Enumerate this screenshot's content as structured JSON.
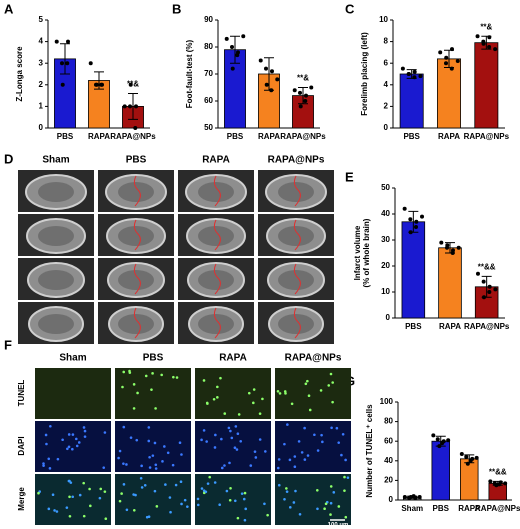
{
  "chart_data": [
    {
      "type": "bar",
      "panel": "A",
      "y_label": "Z-Longa score",
      "categories": [
        "PBS",
        "RAPA",
        "RAPA@NPs"
      ],
      "values": [
        3.2,
        2.2,
        1.0
      ],
      "errors": [
        0.7,
        0.4,
        0.6
      ],
      "points": [
        [
          4,
          3,
          3,
          2,
          4
        ],
        [
          3,
          2,
          2,
          2,
          2
        ],
        [
          1,
          1,
          0,
          2,
          1
        ]
      ],
      "colors": [
        "#1a1ad0",
        "#f5821f",
        "#a3100f"
      ],
      "annotation": "**&",
      "ylim": [
        0,
        5
      ],
      "yticks": [
        0,
        1,
        2,
        3,
        4,
        5
      ]
    },
    {
      "type": "bar",
      "panel": "B",
      "y_label": "Foot-fault-test (%)",
      "categories": [
        "PBS",
        "RAPA",
        "RAPA@NPs"
      ],
      "values": [
        79,
        70,
        62
      ],
      "errors": [
        5,
        6,
        3
      ],
      "points": [
        [
          83,
          80,
          77,
          72,
          78,
          84
        ],
        [
          75,
          72,
          64,
          66,
          71,
          68
        ],
        [
          64,
          63,
          60,
          58,
          62,
          65
        ]
      ],
      "colors": [
        "#1a1ad0",
        "#f5821f",
        "#a3100f"
      ],
      "annotation": "**&",
      "ylim": [
        50,
        90
      ],
      "yticks": [
        50,
        60,
        70,
        80,
        90
      ]
    },
    {
      "type": "bar",
      "panel": "C",
      "y_label": "Forelimb placing (left)",
      "categories": [
        "PBS",
        "RAPA",
        "RAPA@NPs"
      ],
      "values": [
        5.0,
        6.4,
        7.9
      ],
      "errors": [
        0.4,
        0.8,
        0.6
      ],
      "points": [
        [
          5.5,
          5,
          4.7,
          5,
          5.2,
          4.8
        ],
        [
          7,
          6,
          5.5,
          6.5,
          7.3,
          6.2
        ],
        [
          8.5,
          8,
          7.5,
          7.8,
          8.4,
          7.3
        ]
      ],
      "colors": [
        "#1a1ad0",
        "#f5821f",
        "#a3100f"
      ],
      "annotation": "**&",
      "ylim": [
        0,
        10
      ],
      "yticks": [
        0,
        2,
        4,
        6,
        8,
        10
      ]
    },
    {
      "type": "bar",
      "panel": "E",
      "y_label": [
        "Infarct volume",
        "(% of whole brain)"
      ],
      "categories": [
        "PBS",
        "RAPA",
        "RAPA@NPs"
      ],
      "values": [
        37,
        27,
        12
      ],
      "errors": [
        4,
        2,
        4
      ],
      "points": [
        [
          42,
          38,
          35,
          33,
          37,
          39
        ],
        [
          29,
          27,
          25,
          28,
          26,
          27
        ],
        [
          17,
          14,
          10,
          8,
          12,
          11
        ]
      ],
      "colors": [
        "#1a1ad0",
        "#f5821f",
        "#a3100f"
      ],
      "annotation": "**&&",
      "ylim": [
        0,
        50
      ],
      "yticks": [
        0,
        10,
        20,
        30,
        40,
        50
      ]
    },
    {
      "type": "bar",
      "panel": "G",
      "y_label": "Number of TUNEL⁺ cells",
      "categories": [
        "Sham",
        "PBS",
        "RAPA",
        "RAPA@NPs"
      ],
      "values": [
        3,
        60,
        42,
        17
      ],
      "errors": [
        1,
        5,
        4,
        2
      ],
      "points": [
        [
          3,
          2,
          4,
          3,
          2,
          3
        ],
        [
          66,
          62,
          58,
          55,
          60,
          61
        ],
        [
          47,
          44,
          40,
          37,
          42,
          43
        ],
        [
          19,
          17,
          16,
          15,
          18,
          17
        ]
      ],
      "colors": [
        "#606060",
        "#1a1ad0",
        "#f5821f",
        "#a3100f"
      ],
      "annotation": "**&&",
      "ylim": [
        0,
        100
      ],
      "yticks": [
        0,
        20,
        40,
        60,
        80,
        100
      ]
    }
  ],
  "mri": {
    "panel": "D",
    "columns": [
      "Sham",
      "PBS",
      "RAPA",
      "RAPA@NPs"
    ]
  },
  "fluorescence": {
    "panel": "F",
    "columns": [
      "Sham",
      "PBS",
      "RAPA",
      "RAPA@NPs"
    ],
    "rows": [
      "TUNEL",
      "DAPI",
      "Merge"
    ],
    "scale_bar": "100 μm"
  }
}
